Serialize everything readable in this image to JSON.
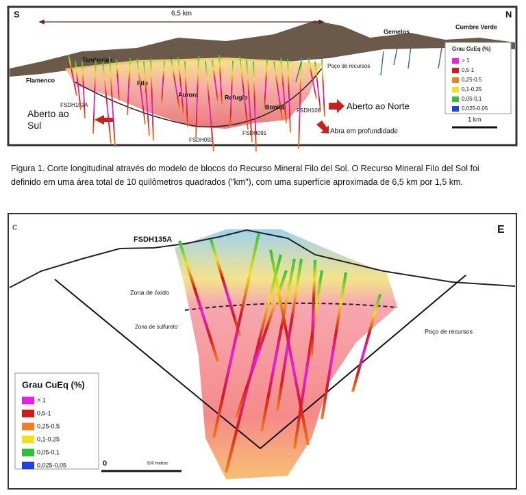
{
  "figure_1": {
    "labels": {
      "south": "S",
      "north": "N",
      "width": "6,5 km",
      "gemelos": "Gemelos",
      "cumbre_verde": "Cumbre Verde",
      "tamberias": "Tamberias",
      "flamenco": "Flamenco",
      "filo": "Filo",
      "aurora": "Aurora",
      "refugio": "Refugio",
      "bonita": "Bonita",
      "fsdh102a": "FSDH102A",
      "fsdh108": "FSDH108",
      "fsdh093": "FSDH093",
      "fsdh091": "FSDH091",
      "pit": "Poço de recursos",
      "open_south": "Aberto ao Sul",
      "open_north": "Aberto ao Norte",
      "open_depth": "Abra em profundidade",
      "scale": "1 km"
    },
    "legend": {
      "title": "Grau CuEq (%)",
      "items": [
        {
          "label": "> 1",
          "color": "#e61fe6"
        },
        {
          "label": "0,5-1",
          "color": "#d61818"
        },
        {
          "label": "0,25-0,5",
          "color": "#f08020"
        },
        {
          "label": "0,1-0,25",
          "color": "#f2e21c"
        },
        {
          "label": "0,05-0,1",
          "color": "#2fbf3a"
        },
        {
          "label": "0,025-0,05",
          "color": "#2040e0"
        }
      ]
    }
  },
  "caption": "Figura 1. Corte longitudinal através do modelo de blocos do Recurso Mineral Filo del Sol. O Recurso Mineral Filo del Sol foi definido em uma área total de 10 quilômetros quadrados (\"km\"), com uma superfície aproximada de 6,5 km por 1,5 km.",
  "figure_2": {
    "labels": {
      "west": "C",
      "east": "E",
      "hole": "FSDH135A",
      "oxide": "Zona de óxido",
      "sulphide": "Zona de sulfureto",
      "pit": "Poço de recursos",
      "scale_zero": "0",
      "scale": "500 metros"
    },
    "legend": {
      "title": "Grau CuEq (%)",
      "items": [
        {
          "label": "> 1",
          "color": "#e61fe6"
        },
        {
          "label": "0,5-1",
          "color": "#d61818"
        },
        {
          "label": "0,25-0,5",
          "color": "#f08020"
        },
        {
          "label": "0,1-0,25",
          "color": "#f2e21c"
        },
        {
          "label": "0,05-0,1",
          "color": "#2fbf3a"
        },
        {
          "label": "0,025-0,05",
          "color": "#2040e0"
        }
      ]
    }
  }
}
